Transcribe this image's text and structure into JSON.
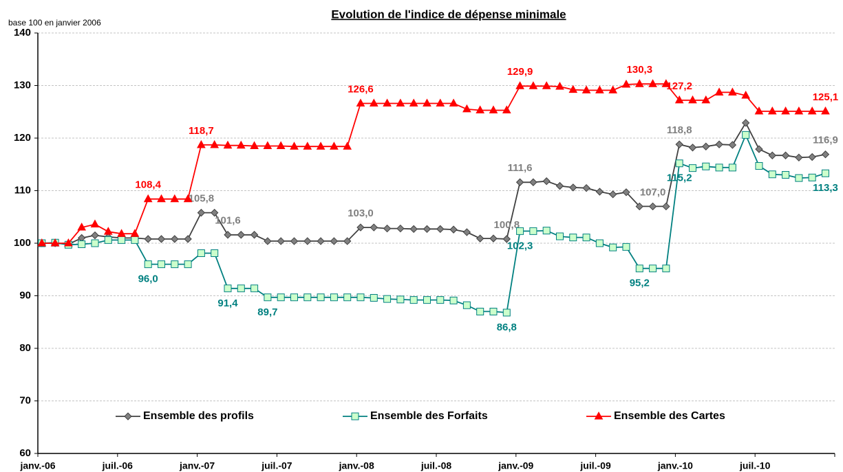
{
  "chart_data": {
    "type": "line",
    "title": "Evolution de l'indice de dépense minimale",
    "y_label": "base 100 en janvier 2006",
    "categories": [
      "janv.-06",
      null,
      null,
      null,
      null,
      null,
      "juil.-06",
      null,
      null,
      null,
      null,
      null,
      "janv.-07",
      null,
      null,
      null,
      null,
      null,
      "juil.-07",
      null,
      null,
      null,
      null,
      null,
      "janv.-08",
      null,
      null,
      null,
      null,
      null,
      "juil.-08",
      null,
      null,
      null,
      null,
      null,
      "janv.-09",
      null,
      null,
      null,
      null,
      null,
      "juil.-09",
      null,
      null,
      null,
      null,
      null,
      "janv.-10",
      null,
      null,
      null,
      null,
      null,
      "juil.-10",
      null,
      null,
      null,
      null,
      null
    ],
    "ylim": [
      60,
      140
    ],
    "yticks": [
      60,
      70,
      80,
      90,
      100,
      110,
      120,
      130,
      140
    ],
    "grid": true,
    "legend": "lower center",
    "series": [
      {
        "name": "Ensemble des profils",
        "color": "#404040",
        "marker": "diamond",
        "marker_fill": "#808080",
        "label_color": "#808080",
        "label_side": "above",
        "values": [
          100,
          100,
          99.8,
          101,
          101.5,
          101.2,
          101,
          101,
          100.8,
          100.8,
          100.8,
          100.8,
          105.8,
          105.8,
          101.6,
          101.6,
          101.6,
          100.4,
          100.4,
          100.4,
          100.4,
          100.4,
          100.4,
          100.4,
          103,
          103,
          102.8,
          102.8,
          102.7,
          102.7,
          102.7,
          102.6,
          102.1,
          100.9,
          100.9,
          100.8,
          111.6,
          111.6,
          111.8,
          110.9,
          110.6,
          110.5,
          109.8,
          109.3,
          109.7,
          107,
          107,
          107,
          118.8,
          118.2,
          118.4,
          118.8,
          118.7,
          122.9,
          117.9,
          116.7,
          116.7,
          116.3,
          116.4,
          116.9
        ],
        "value_labels": [
          null,
          null,
          null,
          null,
          null,
          null,
          null,
          null,
          null,
          null,
          null,
          null,
          "105,8",
          null,
          "101,6",
          null,
          null,
          null,
          null,
          null,
          null,
          null,
          null,
          null,
          "103,0",
          null,
          null,
          null,
          null,
          null,
          null,
          null,
          null,
          null,
          null,
          "100,8",
          "111,6",
          null,
          null,
          null,
          null,
          null,
          null,
          null,
          null,
          null,
          "107,0",
          null,
          "118,8",
          null,
          null,
          null,
          null,
          null,
          null,
          null,
          null,
          null,
          null,
          "116,9"
        ]
      },
      {
        "name": "Ensemble des Forfaits",
        "color": "#008080",
        "marker": "square",
        "marker_fill": "#ccffcc",
        "label_color": "#008080",
        "label_side": "below",
        "values": [
          100,
          100.1,
          99.7,
          99.8,
          100,
          100.6,
          100.6,
          100.6,
          96,
          96,
          96,
          96,
          98.1,
          98.1,
          91.4,
          91.4,
          91.4,
          89.7,
          89.7,
          89.7,
          89.7,
          89.7,
          89.7,
          89.7,
          89.7,
          89.6,
          89.4,
          89.3,
          89.2,
          89.2,
          89.2,
          89.1,
          88.2,
          87,
          87,
          86.8,
          102.3,
          102.3,
          102.4,
          101.3,
          101.1,
          101.1,
          100,
          99.2,
          99.3,
          95.2,
          95.2,
          95.2,
          115.2,
          114.3,
          114.6,
          114.4,
          114.4,
          120.6,
          114.7,
          113.1,
          113,
          112.4,
          112.5,
          113.3
        ],
        "value_labels": [
          null,
          null,
          null,
          null,
          null,
          null,
          null,
          null,
          "96,0",
          null,
          null,
          null,
          null,
          null,
          "91,4",
          null,
          null,
          "89,7",
          null,
          null,
          null,
          null,
          null,
          null,
          null,
          null,
          null,
          null,
          null,
          null,
          null,
          null,
          null,
          null,
          null,
          "86,8",
          "102,3",
          null,
          null,
          null,
          null,
          null,
          null,
          null,
          null,
          "95,2",
          null,
          null,
          "115,2",
          null,
          null,
          null,
          null,
          null,
          null,
          null,
          null,
          null,
          null,
          "113,3"
        ]
      },
      {
        "name": "Ensemble des Cartes",
        "color": "#ff0000",
        "marker": "triangle",
        "marker_fill": "#ff0000",
        "label_color": "#ff0000",
        "label_side": "above",
        "values": [
          100,
          100,
          100,
          103,
          103.6,
          102.2,
          101.8,
          101.8,
          108.4,
          108.4,
          108.4,
          108.4,
          118.7,
          118.7,
          118.6,
          118.6,
          118.5,
          118.5,
          118.5,
          118.4,
          118.4,
          118.4,
          118.4,
          118.4,
          126.6,
          126.6,
          126.6,
          126.6,
          126.6,
          126.6,
          126.6,
          126.6,
          125.5,
          125.3,
          125.3,
          125.3,
          129.9,
          129.9,
          129.9,
          129.8,
          129.2,
          129.1,
          129.1,
          129.1,
          130.2,
          130.3,
          130.3,
          130.3,
          127.2,
          127.2,
          127.2,
          128.7,
          128.7,
          128.1,
          125.1,
          125.1,
          125.1,
          125.1,
          125.1,
          125.1
        ],
        "value_labels": [
          null,
          null,
          null,
          null,
          null,
          null,
          null,
          null,
          "108,4",
          null,
          null,
          null,
          "118,7",
          null,
          null,
          null,
          null,
          null,
          null,
          null,
          null,
          null,
          null,
          null,
          "126,6",
          null,
          null,
          null,
          null,
          null,
          null,
          null,
          null,
          null,
          null,
          null,
          "129,9",
          null,
          null,
          null,
          null,
          null,
          null,
          null,
          null,
          "130,3",
          null,
          null,
          "127,2",
          null,
          null,
          null,
          null,
          null,
          null,
          null,
          null,
          null,
          null,
          "125,1"
        ]
      }
    ]
  }
}
